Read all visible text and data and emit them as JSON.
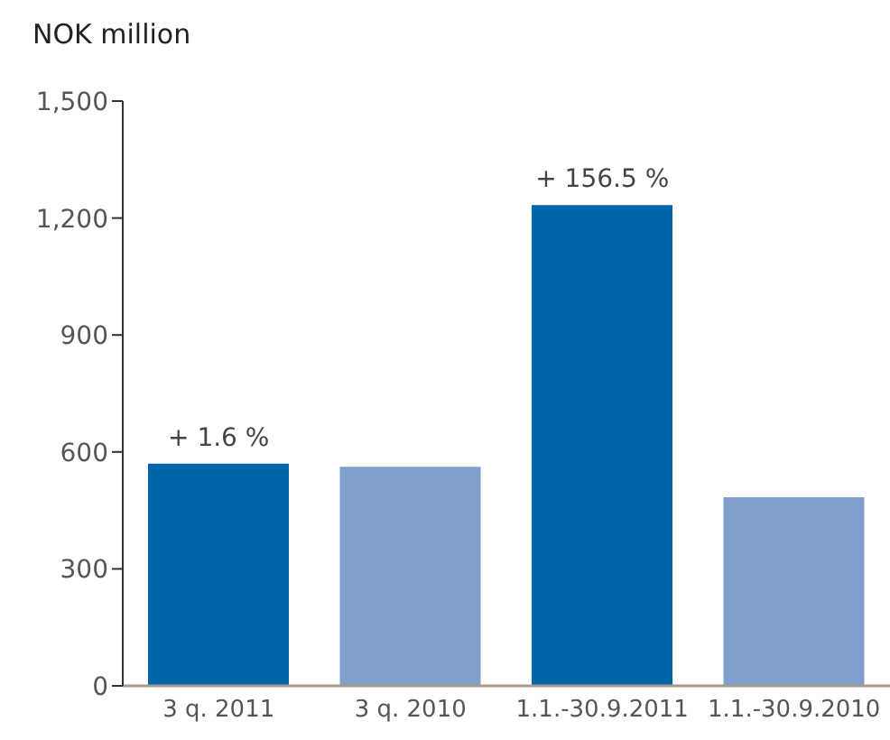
{
  "chart_data": {
    "type": "bar",
    "ylabel": "NOK million",
    "categories": [
      "3 q. 2011",
      "3 q. 2010",
      "1.1.-30.9.2011",
      "1.1.-30.9.2010"
    ],
    "values": [
      570,
      562,
      1233,
      484
    ],
    "colors": [
      "#0066aa",
      "#7f9fcc",
      "#0066aa",
      "#7f9fcc"
    ],
    "ylim": [
      0,
      1500
    ],
    "yticks": [
      0,
      300,
      600,
      900,
      {
        "value": 1200,
        "label": "1,200"
      },
      {
        "value": 1500,
        "label": "1,500"
      }
    ],
    "grid": false,
    "legend": false,
    "annotations": [
      {
        "text": "+ 1.6 %",
        "x": "3 q. 2011",
        "y": 570
      },
      {
        "text": "+ 156.5 %",
        "x": "1.1.-30.9.2011",
        "y": 1233
      }
    ]
  }
}
